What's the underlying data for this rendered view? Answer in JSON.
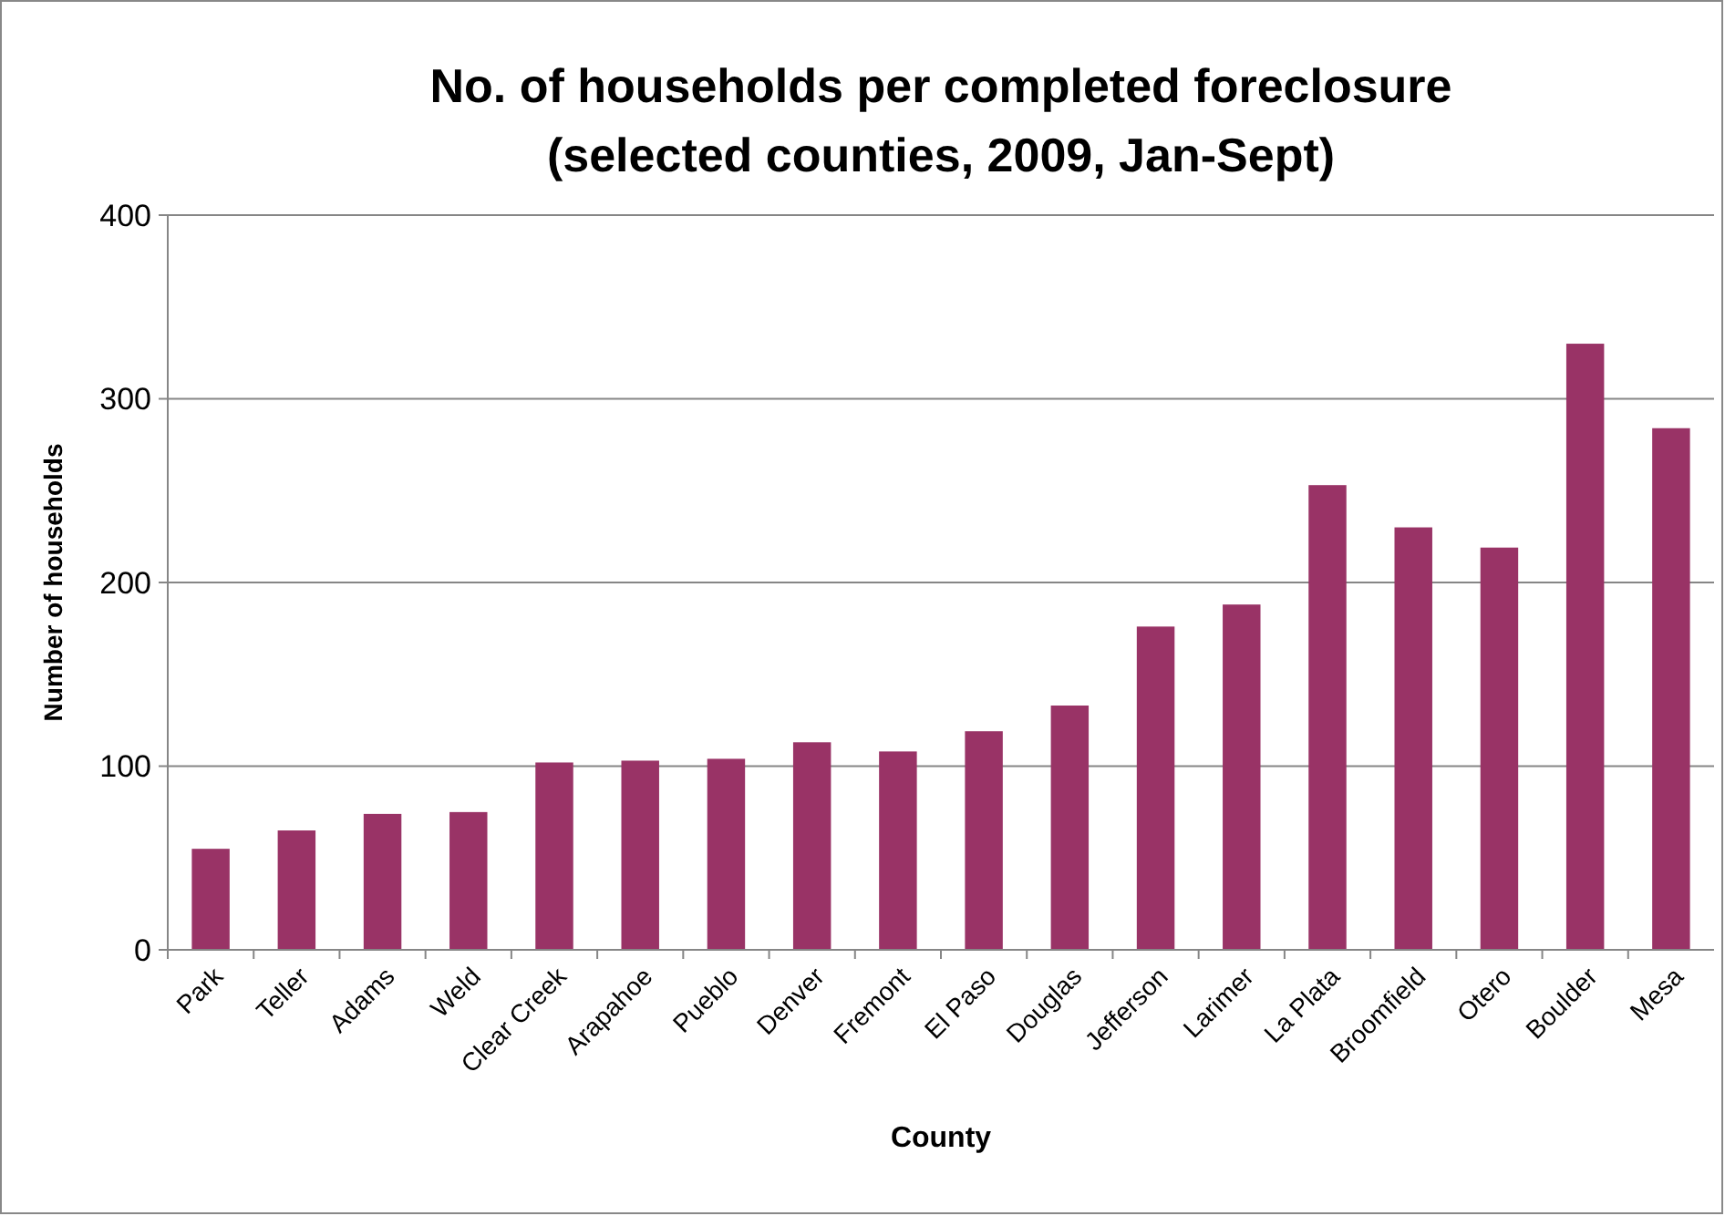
{
  "chart_data": {
    "type": "bar",
    "title": "No. of households per completed foreclosure\n(selected counties, 2009, Jan-Sept)",
    "xlabel": "County",
    "ylabel": "Number of households",
    "categories": [
      "Park",
      "Teller",
      "Adams",
      "Weld",
      "Clear Creek",
      "Arapahoe",
      "Pueblo",
      "Denver",
      "Fremont",
      "El Paso",
      "Douglas",
      "Jefferson",
      "Larimer",
      "La Plata",
      "Broomfield",
      "Otero",
      "Boulder",
      "Mesa"
    ],
    "values": [
      55,
      65,
      74,
      75,
      102,
      103,
      104,
      113,
      108,
      119,
      133,
      176,
      188,
      253,
      230,
      219,
      330,
      284
    ],
    "color": "#993366",
    "ylim": [
      0,
      400
    ],
    "yticks": [
      0,
      100,
      200,
      300,
      400
    ],
    "grid": "y"
  }
}
